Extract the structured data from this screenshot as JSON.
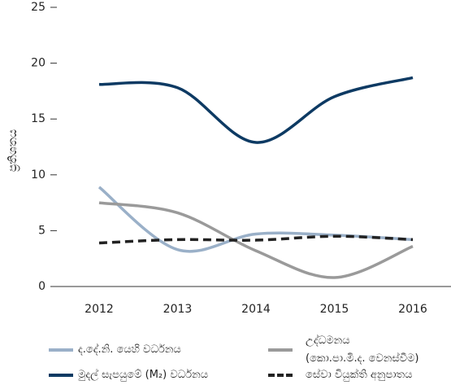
{
  "chart_data": {
    "type": "line",
    "y_label": "ප්‍රතිශතය",
    "categories": [
      "2012",
      "2013",
      "2014",
      "2015",
      "2016"
    ],
    "series": [
      {
        "name": "ද.දේ.නි. යෙහි වර්ධනය",
        "color": "#9ab0c8",
        "dash": false,
        "values": [
          8.9,
          3.3,
          4.7,
          4.6,
          4.2
        ]
      },
      {
        "name": "උද්ධමනය\n(කො.පා.මි.ද. වෙනස්වීම)",
        "color": "#9a9a9a",
        "dash": false,
        "values": [
          7.5,
          6.6,
          3.2,
          0.8,
          3.6
        ]
      },
      {
        "name": "මුදල් සැපයුමේ (M₂) වර්ධනය",
        "color": "#0d3a63",
        "dash": false,
        "values": [
          18.1,
          17.8,
          12.9,
          17.0,
          18.7
        ]
      },
      {
        "name": "සේවා වියුක්ති අනුපාතය",
        "color": "#222222",
        "dash": true,
        "values": [
          3.9,
          4.2,
          4.15,
          4.5,
          4.2
        ]
      }
    ],
    "ylim": [
      0,
      25
    ],
    "yticks": [
      0,
      5,
      10,
      15,
      20,
      25
    ],
    "legend": "bottom"
  }
}
